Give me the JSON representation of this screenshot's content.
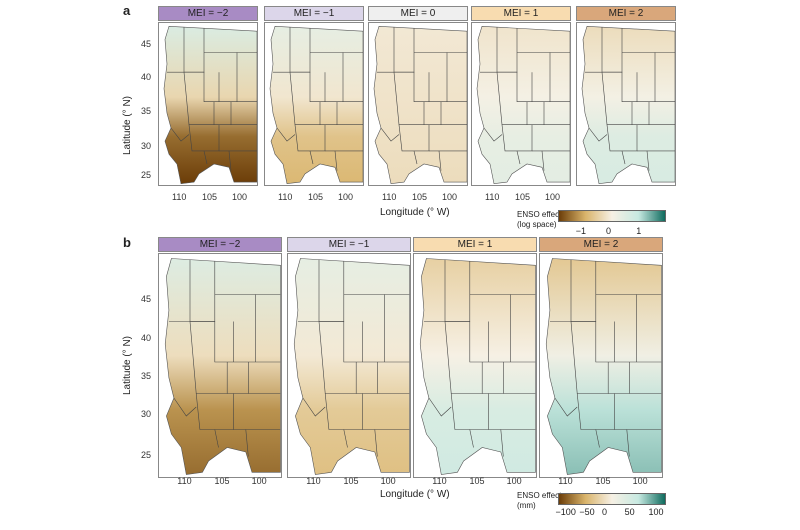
{
  "panel_a": {
    "label": "a",
    "strips": [
      "MEI = −2",
      "MEI = −1",
      "MEI = 0",
      "MEI = 1",
      "MEI = 2"
    ],
    "strip_colors": [
      "#a88bc4",
      "#dcd6ea",
      "#efefef",
      "#f8dcb0",
      "#d9a77b"
    ],
    "y_ticks": [
      "45",
      "40",
      "35",
      "30",
      "25"
    ],
    "x_ticks": [
      "110",
      "105",
      "100"
    ],
    "ylabel": "Latitude (° N)",
    "xlabel": "Longitude (° W)",
    "colorbar": {
      "title_line1": "ENSO effect",
      "title_line2": "(log space)",
      "ticks": [
        "−1",
        "0",
        "1"
      ]
    },
    "effects": [
      {
        "north": 0.45,
        "south": -1.5
      },
      {
        "north": 0.25,
        "south": -0.7
      },
      {
        "north": -0.1,
        "south": -0.25
      },
      {
        "north": -0.15,
        "south": 0.3
      },
      {
        "north": -0.25,
        "south": 0.5
      }
    ]
  },
  "panel_b": {
    "label": "b",
    "strips": [
      "MEI = −2",
      "MEI = −1",
      "MEI = 1",
      "MEI = 2"
    ],
    "strip_colors": [
      "#a88bc4",
      "#dcd6ea",
      "#f8dcb0",
      "#d9a77b"
    ],
    "y_ticks": [
      "45",
      "40",
      "35",
      "30",
      "25"
    ],
    "x_ticks": [
      "110",
      "105",
      "100"
    ],
    "ylabel": "Latitude (° N)",
    "xlabel": "Longitude (° W)",
    "colorbar": {
      "title_line1": "ENSO effect",
      "title_line2": "(mm)",
      "ticks": [
        "−100",
        "−50",
        "0",
        "50",
        "100"
      ]
    },
    "effects": [
      {
        "north": 0.4,
        "south": -1.2
      },
      {
        "north": 0.25,
        "south": -0.6
      },
      {
        "north": -0.4,
        "south": 0.6
      },
      {
        "north": -0.5,
        "south": 1.0
      }
    ]
  },
  "colors": {
    "brown": "#6b3d08",
    "tan": "#d9b46b",
    "pale": "#f6f0e4",
    "teal_light": "#c7e9e1",
    "teal": "#0f6b5e"
  }
}
